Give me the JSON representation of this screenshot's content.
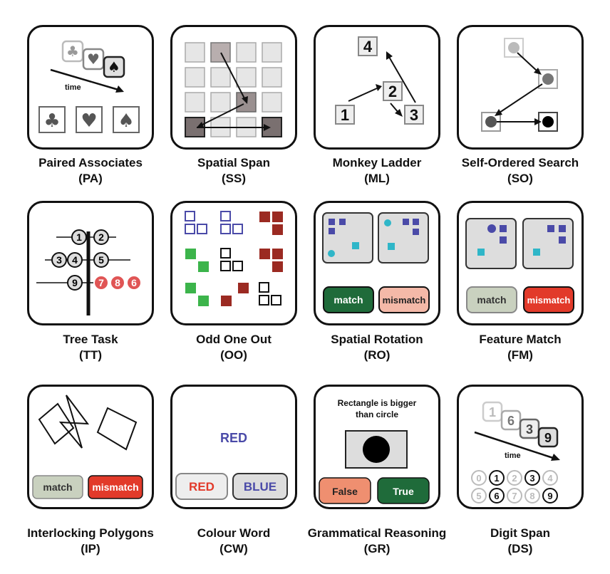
{
  "tasks": [
    {
      "name": "Paired Associates",
      "code": "(PA)",
      "label": "time"
    },
    {
      "name": "Spatial Span",
      "code": "(SS)"
    },
    {
      "name": "Monkey Ladder",
      "code": "(ML)",
      "numbers": [
        "4",
        "2",
        "1",
        "3"
      ]
    },
    {
      "name": "Self-Ordered Search",
      "code": "(SO)"
    },
    {
      "name": "Tree Task",
      "code": "(TT)",
      "nodes": [
        "1",
        "2",
        "3",
        "4",
        "5",
        "9",
        "7",
        "8",
        "6"
      ]
    },
    {
      "name": "Odd One Out",
      "code": "(OO)"
    },
    {
      "name": "Spatial Rotation",
      "code": "(RO)",
      "buttons": [
        "match",
        "mismatch"
      ]
    },
    {
      "name": "Feature Match",
      "code": "(FM)",
      "buttons": [
        "match",
        "mismatch"
      ]
    },
    {
      "name": "Interlocking Polygons",
      "code": "(IP)",
      "buttons": [
        "match",
        "mismatch"
      ]
    },
    {
      "name": "Colour Word",
      "code": "(CW)",
      "word": "RED",
      "buttons": [
        "RED",
        "BLUE"
      ]
    },
    {
      "name": "Grammatical Reasoning",
      "code": "(GR)",
      "statement": [
        "Rectangle is bigger",
        "than circle"
      ],
      "buttons": [
        "False",
        "True"
      ]
    },
    {
      "name": "Digit Span",
      "code": "(DS)",
      "sequence": [
        "1",
        "6",
        "3",
        "9"
      ],
      "label": "time",
      "digits": [
        "0",
        "1",
        "2",
        "3",
        "4",
        "5",
        "6",
        "7",
        "8",
        "9"
      ]
    }
  ],
  "colors": {
    "dark_red": "#9b2a22",
    "green": "#3cb44b",
    "blue": "#4a4aa8",
    "cyan": "#2fb6c8",
    "dark_green": "#1f6b3a",
    "pink": "#f4b9a8",
    "sage": "#c9d1bf",
    "red": "#e23a2a",
    "salmon": "#ef8f70"
  }
}
